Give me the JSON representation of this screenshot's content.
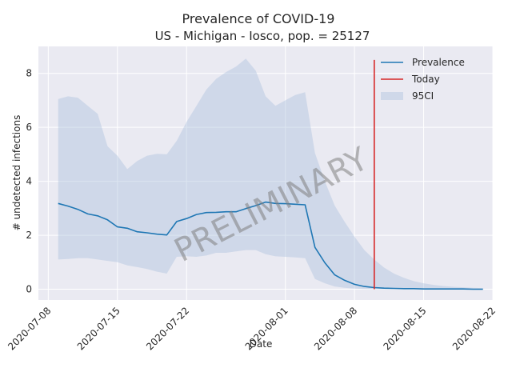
{
  "chart_data": {
    "type": "line",
    "title": "Prevalence of COVID-19",
    "subtitle": "US - Michigan - Iosco, pop. = 25127",
    "xlabel": "Date",
    "ylabel": "# undetected infections",
    "xlim": [
      "2020-07-07",
      "2020-08-22"
    ],
    "ylim": [
      -0.4,
      9.0
    ],
    "xticks": [
      "2020-07-08",
      "2020-07-15",
      "2020-07-22",
      "2020-08-01",
      "2020-08-08",
      "2020-08-15",
      "2020-08-22"
    ],
    "yticks": [
      0,
      2,
      4,
      6,
      8
    ],
    "grid": true,
    "legend_position": "top-right",
    "watermark": "PRELIMINARY",
    "colors": {
      "background": "#eaeaf2",
      "grid": "#ffffff",
      "prevalence": "#1f77b4",
      "today": "#d62728",
      "ci": "#b0c4de"
    },
    "series": [
      {
        "name": "Prevalence",
        "kind": "line",
        "points": [
          [
            "2020-07-09",
            3.18
          ],
          [
            "2020-07-10",
            3.08
          ],
          [
            "2020-07-11",
            2.96
          ],
          [
            "2020-07-12",
            2.79
          ],
          [
            "2020-07-13",
            2.72
          ],
          [
            "2020-07-14",
            2.57
          ],
          [
            "2020-07-15",
            2.31
          ],
          [
            "2020-07-16",
            2.26
          ],
          [
            "2020-07-17",
            2.13
          ],
          [
            "2020-07-18",
            2.09
          ],
          [
            "2020-07-19",
            2.04
          ],
          [
            "2020-07-20",
            2.01
          ],
          [
            "2020-07-21",
            2.51
          ],
          [
            "2020-07-22",
            2.62
          ],
          [
            "2020-07-23",
            2.77
          ],
          [
            "2020-07-24",
            2.84
          ],
          [
            "2020-07-25",
            2.85
          ],
          [
            "2020-07-26",
            2.87
          ],
          [
            "2020-07-27",
            2.87
          ],
          [
            "2020-07-28",
            2.99
          ],
          [
            "2020-07-29",
            3.1
          ],
          [
            "2020-07-30",
            3.23
          ],
          [
            "2020-07-31",
            3.18
          ],
          [
            "2020-08-01",
            3.17
          ],
          [
            "2020-08-02",
            3.15
          ],
          [
            "2020-08-03",
            3.13
          ],
          [
            "2020-08-04",
            1.55
          ],
          [
            "2020-08-05",
            0.98
          ],
          [
            "2020-08-06",
            0.53
          ],
          [
            "2020-08-07",
            0.33
          ],
          [
            "2020-08-08",
            0.18
          ],
          [
            "2020-08-09",
            0.1
          ],
          [
            "2020-08-10",
            0.06
          ],
          [
            "2020-08-11",
            0.04
          ],
          [
            "2020-08-12",
            0.03
          ],
          [
            "2020-08-13",
            0.02
          ],
          [
            "2020-08-14",
            0.02
          ],
          [
            "2020-08-15",
            0.01
          ],
          [
            "2020-08-16",
            0.01
          ],
          [
            "2020-08-17",
            0.01
          ],
          [
            "2020-08-18",
            0.01
          ],
          [
            "2020-08-19",
            0.01
          ],
          [
            "2020-08-20",
            0.0
          ],
          [
            "2020-08-21",
            0.0
          ]
        ]
      },
      {
        "name": "Today",
        "kind": "vline",
        "x": "2020-08-10",
        "y_range": [
          0,
          8.5
        ]
      },
      {
        "name": "95CI",
        "kind": "band",
        "points": [
          [
            "2020-07-09",
            1.1,
            7.05
          ],
          [
            "2020-07-10",
            1.12,
            7.15
          ],
          [
            "2020-07-11",
            1.15,
            7.1
          ],
          [
            "2020-07-12",
            1.15,
            6.8
          ],
          [
            "2020-07-13",
            1.1,
            6.5
          ],
          [
            "2020-07-14",
            1.05,
            5.3
          ],
          [
            "2020-07-15",
            1.0,
            4.95
          ],
          [
            "2020-07-16",
            0.88,
            4.45
          ],
          [
            "2020-07-17",
            0.82,
            4.75
          ],
          [
            "2020-07-18",
            0.75,
            4.95
          ],
          [
            "2020-07-19",
            0.65,
            5.02
          ],
          [
            "2020-07-20",
            0.58,
            5.0
          ],
          [
            "2020-07-21",
            1.2,
            5.5
          ],
          [
            "2020-07-22",
            1.22,
            6.2
          ],
          [
            "2020-07-23",
            1.2,
            6.8
          ],
          [
            "2020-07-24",
            1.25,
            7.4
          ],
          [
            "2020-07-25",
            1.35,
            7.8
          ],
          [
            "2020-07-26",
            1.35,
            8.05
          ],
          [
            "2020-07-27",
            1.4,
            8.25
          ],
          [
            "2020-07-28",
            1.45,
            8.55
          ],
          [
            "2020-07-29",
            1.45,
            8.1
          ],
          [
            "2020-07-30",
            1.3,
            7.15
          ],
          [
            "2020-07-31",
            1.22,
            6.8
          ],
          [
            "2020-08-01",
            1.2,
            7.0
          ],
          [
            "2020-08-02",
            1.18,
            7.2
          ],
          [
            "2020-08-03",
            1.15,
            7.3
          ],
          [
            "2020-08-04",
            0.38,
            5.05
          ],
          [
            "2020-08-05",
            0.22,
            4.0
          ],
          [
            "2020-08-06",
            0.1,
            3.1
          ],
          [
            "2020-08-07",
            0.05,
            2.5
          ],
          [
            "2020-08-08",
            0.02,
            1.95
          ],
          [
            "2020-08-09",
            0.01,
            1.45
          ],
          [
            "2020-08-10",
            0.0,
            1.1
          ],
          [
            "2020-08-11",
            0.0,
            0.8
          ],
          [
            "2020-08-12",
            0.0,
            0.58
          ],
          [
            "2020-08-13",
            0.0,
            0.42
          ],
          [
            "2020-08-14",
            0.0,
            0.3
          ],
          [
            "2020-08-15",
            0.0,
            0.22
          ],
          [
            "2020-08-16",
            0.0,
            0.16
          ],
          [
            "2020-08-17",
            0.0,
            0.12
          ],
          [
            "2020-08-18",
            0.0,
            0.09
          ],
          [
            "2020-08-19",
            0.0,
            0.07
          ],
          [
            "2020-08-20",
            0.0,
            0.05
          ],
          [
            "2020-08-21",
            0.0,
            0.04
          ]
        ]
      }
    ]
  }
}
